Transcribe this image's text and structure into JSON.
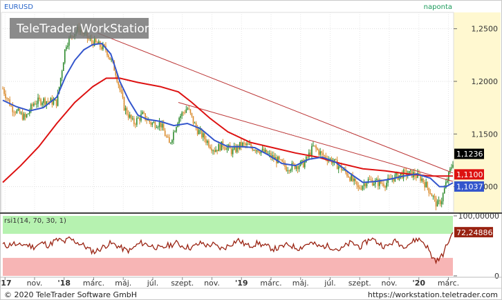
{
  "header": {
    "symbol": "EURUSD",
    "period": "naponta",
    "watermark": "TeleTrader WorkStation"
  },
  "footer": {
    "copyright": "© 2020 TeleTrader Software GmbH",
    "url": "https://workstation.teletrader.com"
  },
  "colors": {
    "up_candle": "#2e8b2e",
    "down_candle": "#d98a2b",
    "ma_short": "#3355cc",
    "ma_long": "#dd1111",
    "trendline": "#bb3333",
    "rsi_line": "#992211",
    "rsi_overbought_zone": "#b6f2b0",
    "rsi_oversold_zone": "#f7b5b5",
    "axis_bg_highlight": "#fff8d0"
  },
  "chart_data": [
    {
      "type": "candlestick",
      "title": "EURUSD",
      "ylim": [
        1.0755,
        1.2655
      ],
      "yticks": [
        1.25,
        1.2,
        1.15,
        1.1
      ],
      "ytick_labels": [
        "1,2500",
        "1,2000",
        "1,1500",
        "1,1000"
      ],
      "x_labels": [
        "'17",
        "nov.",
        "'18",
        "márc.",
        "máj.",
        "júl.",
        "szept.",
        "nov.",
        "'19",
        "márc.",
        "máj.",
        "júl.",
        "szept.",
        "nov.",
        "'20",
        "márc."
      ],
      "last_values": {
        "close": {
          "label": "1,1236",
          "value": 1.1236,
          "bg": "#000000"
        },
        "ma_long": {
          "label": "1,1100",
          "value": 1.11,
          "bg": "#dd1111"
        },
        "ma_short": {
          "label": "1,1037",
          "value": 1.1037,
          "bg": "#3355cc"
        }
      },
      "price_path": [
        [
          0,
          1.193
        ],
        [
          0.02,
          1.175
        ],
        [
          0.05,
          1.165
        ],
        [
          0.07,
          1.18
        ],
        [
          0.09,
          1.182
        ],
        [
          0.12,
          1.18
        ],
        [
          0.14,
          1.235
        ],
        [
          0.155,
          1.245
        ],
        [
          0.17,
          1.25
        ],
        [
          0.19,
          1.24
        ],
        [
          0.21,
          1.235
        ],
        [
          0.23,
          1.23
        ],
        [
          0.25,
          1.21
        ],
        [
          0.27,
          1.175
        ],
        [
          0.29,
          1.16
        ],
        [
          0.31,
          1.168
        ],
        [
          0.33,
          1.16
        ],
        [
          0.35,
          1.16
        ],
        [
          0.37,
          1.14
        ],
        [
          0.39,
          1.165
        ],
        [
          0.41,
          1.175
        ],
        [
          0.43,
          1.155
        ],
        [
          0.45,
          1.145
        ],
        [
          0.47,
          1.135
        ],
        [
          0.49,
          1.14
        ],
        [
          0.51,
          1.133
        ],
        [
          0.53,
          1.14
        ],
        [
          0.55,
          1.138
        ],
        [
          0.57,
          1.135
        ],
        [
          0.59,
          1.13
        ],
        [
          0.61,
          1.125
        ],
        [
          0.63,
          1.118
        ],
        [
          0.65,
          1.12
        ],
        [
          0.67,
          1.122
        ],
        [
          0.69,
          1.138
        ],
        [
          0.71,
          1.13
        ],
        [
          0.73,
          1.125
        ],
        [
          0.75,
          1.118
        ],
        [
          0.77,
          1.11
        ],
        [
          0.79,
          1.098
        ],
        [
          0.81,
          1.106
        ],
        [
          0.83,
          1.104
        ],
        [
          0.85,
          1.103
        ],
        [
          0.87,
          1.109
        ],
        [
          0.89,
          1.112
        ],
        [
          0.91,
          1.112
        ],
        [
          0.93,
          1.108
        ],
        [
          0.95,
          1.095
        ],
        [
          0.965,
          1.082
        ],
        [
          0.975,
          1.088
        ],
        [
          0.985,
          1.103
        ],
        [
          1.0,
          1.1236
        ]
      ],
      "ma_short_path": [
        [
          0,
          1.182
        ],
        [
          0.03,
          1.176
        ],
        [
          0.06,
          1.172
        ],
        [
          0.09,
          1.175
        ],
        [
          0.12,
          1.185
        ],
        [
          0.14,
          1.205
        ],
        [
          0.16,
          1.22
        ],
        [
          0.18,
          1.23
        ],
        [
          0.2,
          1.235
        ],
        [
          0.22,
          1.236
        ],
        [
          0.24,
          1.226
        ],
        [
          0.26,
          1.2
        ],
        [
          0.28,
          1.182
        ],
        [
          0.3,
          1.168
        ],
        [
          0.32,
          1.164
        ],
        [
          0.35,
          1.162
        ],
        [
          0.38,
          1.158
        ],
        [
          0.41,
          1.16
        ],
        [
          0.44,
          1.155
        ],
        [
          0.47,
          1.144
        ],
        [
          0.5,
          1.138
        ],
        [
          0.53,
          1.138
        ],
        [
          0.56,
          1.137
        ],
        [
          0.59,
          1.13
        ],
        [
          0.62,
          1.122
        ],
        [
          0.65,
          1.12
        ],
        [
          0.68,
          1.126
        ],
        [
          0.71,
          1.128
        ],
        [
          0.74,
          1.123
        ],
        [
          0.77,
          1.113
        ],
        [
          0.8,
          1.104
        ],
        [
          0.83,
          1.105
        ],
        [
          0.86,
          1.107
        ],
        [
          0.89,
          1.11
        ],
        [
          0.92,
          1.112
        ],
        [
          0.95,
          1.108
        ],
        [
          0.97,
          1.1
        ],
        [
          0.985,
          1.1
        ],
        [
          1.0,
          1.1037
        ]
      ],
      "ma_long_path": [
        [
          0,
          1.104
        ],
        [
          0.04,
          1.12
        ],
        [
          0.08,
          1.138
        ],
        [
          0.12,
          1.16
        ],
        [
          0.16,
          1.18
        ],
        [
          0.2,
          1.195
        ],
        [
          0.23,
          1.203
        ],
        [
          0.26,
          1.203
        ],
        [
          0.3,
          1.199
        ],
        [
          0.35,
          1.195
        ],
        [
          0.39,
          1.19
        ],
        [
          0.42,
          1.18
        ],
        [
          0.46,
          1.165
        ],
        [
          0.5,
          1.152
        ],
        [
          0.55,
          1.142
        ],
        [
          0.6,
          1.137
        ],
        [
          0.65,
          1.132
        ],
        [
          0.7,
          1.128
        ],
        [
          0.75,
          1.122
        ],
        [
          0.8,
          1.117
        ],
        [
          0.85,
          1.115
        ],
        [
          0.9,
          1.112
        ],
        [
          0.95,
          1.11
        ],
        [
          1.0,
          1.11
        ]
      ],
      "trendlines": [
        [
          [
            0.21,
            1.246
          ],
          [
            1.0,
            1.113
          ]
        ],
        [
          [
            0.39,
            1.18
          ],
          [
            1.0,
            1.105
          ]
        ]
      ]
    },
    {
      "type": "line",
      "title": "rsi1(14, 70, 30, 1)",
      "ylim": [
        0,
        100
      ],
      "yticks": [
        100,
        0
      ],
      "ytick_labels": [
        "100,00000",
        "0"
      ],
      "overbought": 70,
      "oversold": 30,
      "last_value": {
        "label": "72,24886",
        "value": 72.24886,
        "bg": "#992211"
      },
      "series": [
        {
          "values": [
            52,
            50,
            55,
            49,
            53,
            51,
            48,
            52,
            55,
            50,
            58,
            60,
            56,
            62,
            58,
            54,
            50,
            43,
            40,
            45,
            50,
            54,
            52,
            47,
            43,
            42,
            50,
            55,
            53,
            50,
            48,
            45,
            50,
            52,
            55,
            50,
            48,
            47,
            52,
            55,
            50,
            53,
            48,
            45,
            50,
            55,
            60,
            54,
            50,
            52,
            55,
            50,
            48,
            45,
            46,
            50,
            52,
            48,
            46,
            51,
            55,
            52,
            48,
            50,
            49,
            46,
            43,
            50,
            55,
            52,
            48,
            56,
            63,
            57,
            52,
            48,
            55,
            58,
            50,
            52,
            56,
            62,
            58,
            48,
            30,
            25,
            35,
            55,
            72.24886
          ]
        }
      ]
    }
  ]
}
